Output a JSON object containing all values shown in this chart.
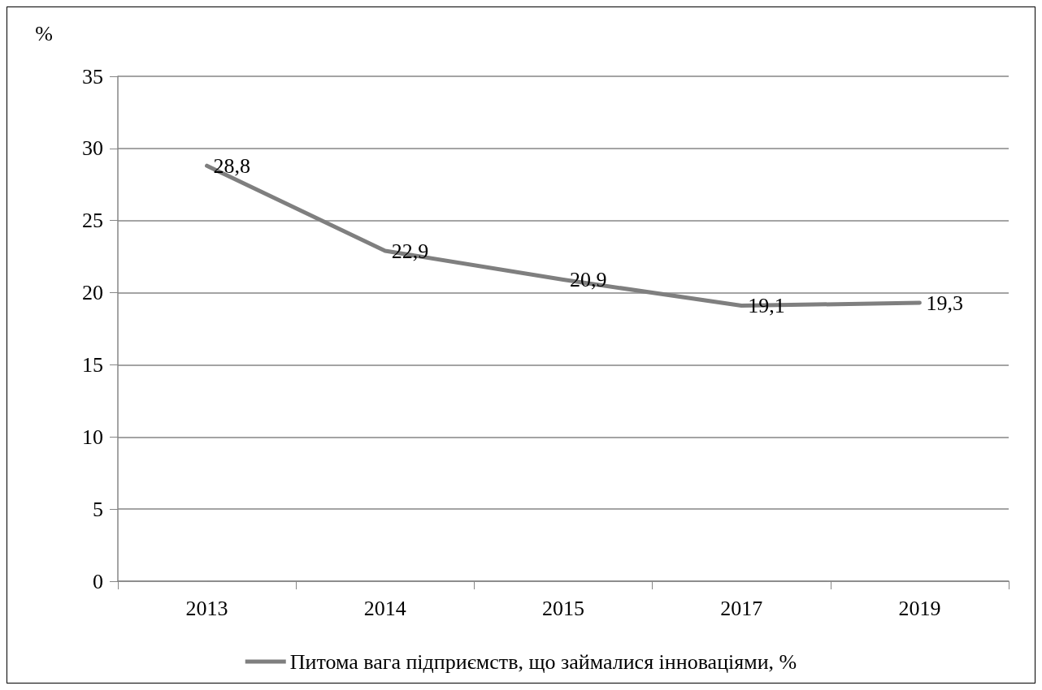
{
  "chart_data": {
    "type": "line",
    "ylabel": "%",
    "categories": [
      "2013",
      "2014",
      "2015",
      "2017",
      "2019"
    ],
    "series": [
      {
        "name": "Питома вага підприємств, що займалися інноваціями, %",
        "color": "#7f7f7f",
        "values": [
          28.8,
          22.9,
          20.9,
          19.1,
          19.3
        ],
        "value_labels": [
          "28,8",
          "22,9",
          "20,9",
          "19,1",
          "19,3"
        ]
      }
    ],
    "ylim": [
      0,
      35
    ],
    "yticks": [
      0,
      5,
      10,
      15,
      20,
      25,
      30,
      35
    ],
    "grid": "y",
    "legend": "bottom",
    "marker": "none",
    "line_style": "solid"
  }
}
